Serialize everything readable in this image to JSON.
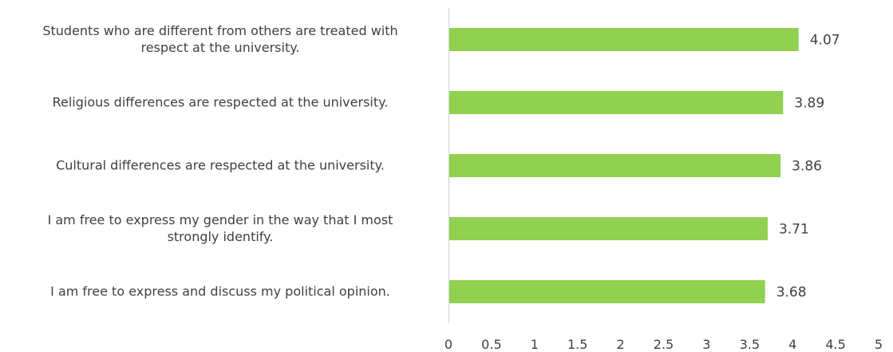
{
  "chart_data": {
    "type": "bar",
    "orientation": "horizontal",
    "categories": [
      "Students who are different from others are treated with respect at the university.",
      "Religious differences are respected at the university.",
      "Cultural differences are respected at the university.",
      "I am free to express my gender in the way that I most strongly identify.",
      "I am free to express and discuss my political opinion."
    ],
    "category_lines": [
      [
        "Students who are different from others are treated with",
        "respect at the university."
      ],
      [
        "Religious differences are respected at the university."
      ],
      [
        "Cultural differences are respected at the university."
      ],
      [
        "I am free to express my gender in the way that I most",
        "strongly identify."
      ],
      [
        "I am free to express and discuss my political opinion."
      ]
    ],
    "values": [
      4.07,
      3.89,
      3.86,
      3.71,
      3.68
    ],
    "value_labels": [
      "4.07",
      "3.89",
      "3.86",
      "3.71",
      "3.68"
    ],
    "xlim": [
      0,
      5
    ],
    "x_ticks": [
      0,
      0.5,
      1,
      1.5,
      2,
      2.5,
      3,
      3.5,
      4,
      4.5,
      5
    ],
    "x_tick_labels": [
      "0",
      "0.5",
      "1",
      "1.5",
      "2",
      "2.5",
      "3",
      "3.5",
      "4",
      "4.5",
      "5"
    ],
    "grid": false,
    "legend": "none",
    "bar_color": "#92d050",
    "axis_color": "#d9d9d9",
    "text_color": "#404040"
  }
}
